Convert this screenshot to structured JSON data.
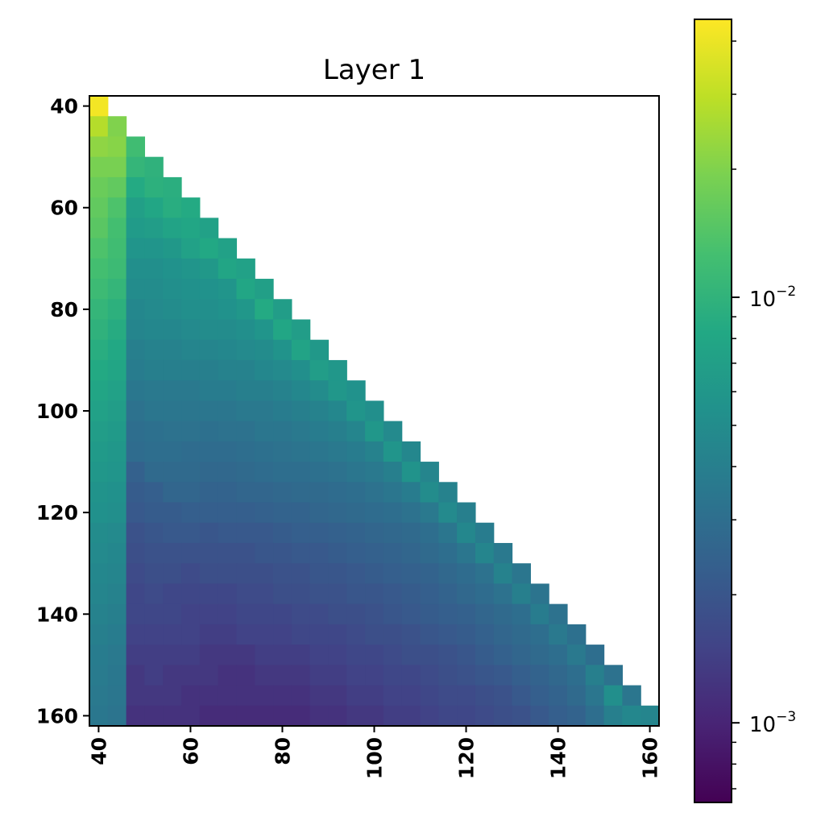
{
  "chart_data": {
    "type": "heatmap",
    "title": "Layer 1",
    "xlabel": "",
    "ylabel": "",
    "x_start": 40,
    "y_start": 40,
    "step": 4,
    "x_ticks": [
      40,
      60,
      80,
      100,
      120,
      140,
      160
    ],
    "y_ticks": [
      40,
      60,
      80,
      100,
      120,
      140,
      160
    ],
    "xlim": [
      38,
      162
    ],
    "ylim": [
      162,
      38
    ],
    "colorbar": {
      "scale": "log",
      "colormap": "viridis",
      "vmin": 0.00065,
      "vmax": 0.045,
      "major_ticks": [
        {
          "value": 0.01,
          "base": "10",
          "exp": "−2"
        },
        {
          "value": 0.001,
          "base": "10",
          "exp": "−3"
        }
      ],
      "minor_ticks": [
        0.0007,
        0.0008,
        0.0009,
        0.002,
        0.003,
        0.004,
        0.005,
        0.006,
        0.007,
        0.008,
        0.009,
        0.02,
        0.03,
        0.04
      ]
    },
    "grid": false,
    "masked": "upper triangle (x > y) is empty/white",
    "values": [
      [
        0.042
      ],
      [
        0.028,
        0.02
      ],
      [
        0.022,
        0.021,
        0.012
      ],
      [
        0.019,
        0.019,
        0.0105,
        0.0098
      ],
      [
        0.017,
        0.016,
        0.0085,
        0.0095,
        0.0092
      ],
      [
        0.016,
        0.0135,
        0.007,
        0.008,
        0.009,
        0.0085
      ],
      [
        0.015,
        0.0125,
        0.0065,
        0.0068,
        0.0075,
        0.008,
        0.0072
      ],
      [
        0.0135,
        0.012,
        0.0058,
        0.0058,
        0.0062,
        0.0072,
        0.0082,
        0.0072
      ],
      [
        0.0125,
        0.0115,
        0.0052,
        0.0052,
        0.0055,
        0.0058,
        0.0062,
        0.0078,
        0.0072
      ],
      [
        0.0115,
        0.0105,
        0.005,
        0.005,
        0.0052,
        0.0054,
        0.0055,
        0.0058,
        0.008,
        0.007
      ],
      [
        0.0105,
        0.0095,
        0.0046,
        0.0048,
        0.005,
        0.0052,
        0.0052,
        0.0055,
        0.006,
        0.0085,
        0.0068
      ],
      [
        0.0098,
        0.0088,
        0.0044,
        0.0046,
        0.0046,
        0.0048,
        0.005,
        0.005,
        0.0052,
        0.0058,
        0.008,
        0.0068
      ],
      [
        0.009,
        0.0082,
        0.004,
        0.0042,
        0.0042,
        0.0044,
        0.0044,
        0.0046,
        0.0048,
        0.005,
        0.0056,
        0.0075,
        0.0062
      ],
      [
        0.0084,
        0.0078,
        0.0038,
        0.004,
        0.004,
        0.004,
        0.004,
        0.0042,
        0.0042,
        0.0046,
        0.0048,
        0.0052,
        0.0068,
        0.006
      ],
      [
        0.0078,
        0.0072,
        0.0035,
        0.0036,
        0.0036,
        0.0036,
        0.0038,
        0.0038,
        0.004,
        0.004,
        0.0042,
        0.0046,
        0.005,
        0.006,
        0.0055
      ],
      [
        0.0072,
        0.0068,
        0.0032,
        0.0034,
        0.0034,
        0.0034,
        0.0034,
        0.0034,
        0.0036,
        0.0036,
        0.0038,
        0.004,
        0.0042,
        0.0046,
        0.0058,
        0.0052
      ],
      [
        0.0068,
        0.0064,
        0.003,
        0.0031,
        0.0032,
        0.0032,
        0.0031,
        0.0032,
        0.0032,
        0.0034,
        0.0034,
        0.0036,
        0.0038,
        0.004,
        0.0044,
        0.006,
        0.0048
      ],
      [
        0.0064,
        0.006,
        0.0029,
        0.003,
        0.003,
        0.0029,
        0.0029,
        0.0029,
        0.003,
        0.0031,
        0.0032,
        0.0033,
        0.0034,
        0.0036,
        0.0038,
        0.0042,
        0.0058,
        0.0046
      ],
      [
        0.006,
        0.0058,
        0.0024,
        0.0028,
        0.0028,
        0.0028,
        0.0027,
        0.0027,
        0.0028,
        0.0029,
        0.003,
        0.003,
        0.0031,
        0.0032,
        0.0034,
        0.0036,
        0.004,
        0.0056,
        0.0044
      ],
      [
        0.0056,
        0.0054,
        0.0022,
        0.0023,
        0.0026,
        0.0026,
        0.0025,
        0.0025,
        0.0026,
        0.0026,
        0.0027,
        0.0028,
        0.0028,
        0.0029,
        0.003,
        0.0032,
        0.0034,
        0.0038,
        0.005,
        0.0042
      ],
      [
        0.0054,
        0.0052,
        0.0021,
        0.0022,
        0.0022,
        0.0023,
        0.0023,
        0.0023,
        0.0023,
        0.0024,
        0.0025,
        0.0025,
        0.0026,
        0.0027,
        0.0028,
        0.0029,
        0.003,
        0.0032,
        0.0036,
        0.0048,
        0.004
      ],
      [
        0.005,
        0.0048,
        0.0019,
        0.002,
        0.0021,
        0.0021,
        0.002,
        0.0021,
        0.0021,
        0.0021,
        0.0022,
        0.0023,
        0.0023,
        0.0024,
        0.0025,
        0.0026,
        0.0027,
        0.0028,
        0.003,
        0.0034,
        0.0046,
        0.0038
      ],
      [
        0.0048,
        0.0046,
        0.0018,
        0.0019,
        0.0019,
        0.0019,
        0.0019,
        0.0019,
        0.0019,
        0.002,
        0.002,
        0.0021,
        0.0021,
        0.0022,
        0.0023,
        0.0024,
        0.0025,
        0.0026,
        0.0028,
        0.003,
        0.0034,
        0.0044,
        0.0036
      ],
      [
        0.0046,
        0.0044,
        0.0017,
        0.0018,
        0.0018,
        0.0017,
        0.0018,
        0.0018,
        0.0018,
        0.0018,
        0.0019,
        0.0019,
        0.002,
        0.002,
        0.0021,
        0.0022,
        0.0023,
        0.0024,
        0.0025,
        0.0027,
        0.0029,
        0.0032,
        0.0042,
        0.0034
      ],
      [
        0.0044,
        0.0042,
        0.0016,
        0.0017,
        0.0016,
        0.0016,
        0.0016,
        0.0016,
        0.0017,
        0.0017,
        0.0018,
        0.0018,
        0.0019,
        0.0019,
        0.002,
        0.002,
        0.0021,
        0.0022,
        0.0023,
        0.0025,
        0.0027,
        0.0029,
        0.0032,
        0.004,
        0.0033
      ],
      [
        0.0042,
        0.004,
        0.0016,
        0.0016,
        0.0016,
        0.0015,
        0.0015,
        0.0015,
        0.0016,
        0.0016,
        0.0016,
        0.0017,
        0.0017,
        0.0018,
        0.0018,
        0.0019,
        0.002,
        0.0021,
        0.0022,
        0.0023,
        0.0024,
        0.0026,
        0.0028,
        0.003,
        0.0038,
        0.0032
      ],
      [
        0.004,
        0.0038,
        0.0015,
        0.0015,
        0.0015,
        0.0015,
        0.0014,
        0.0014,
        0.0015,
        0.0015,
        0.0015,
        0.0016,
        0.0016,
        0.0016,
        0.0017,
        0.0018,
        0.0018,
        0.0019,
        0.002,
        0.0021,
        0.0022,
        0.0024,
        0.0026,
        0.0028,
        0.003,
        0.0036,
        0.0031
      ],
      [
        0.0038,
        0.0036,
        0.0014,
        0.0014,
        0.0014,
        0.0014,
        0.0013,
        0.0013,
        0.0013,
        0.0014,
        0.0014,
        0.0014,
        0.0015,
        0.0015,
        0.0016,
        0.0016,
        0.0017,
        0.0018,
        0.0018,
        0.0019,
        0.002,
        0.0022,
        0.0024,
        0.0026,
        0.0028,
        0.003,
        0.0036,
        0.003
      ],
      [
        0.0037,
        0.0035,
        0.0013,
        0.0014,
        0.0013,
        0.0013,
        0.0013,
        0.0012,
        0.0012,
        0.0013,
        0.0013,
        0.0013,
        0.0014,
        0.0014,
        0.0015,
        0.0015,
        0.0016,
        0.0016,
        0.0017,
        0.0018,
        0.0019,
        0.002,
        0.0021,
        0.0023,
        0.0025,
        0.0027,
        0.003,
        0.004,
        0.0032
      ],
      [
        0.0036,
        0.0034,
        0.0013,
        0.0013,
        0.0013,
        0.0012,
        0.0012,
        0.0012,
        0.0012,
        0.0012,
        0.0012,
        0.0012,
        0.0013,
        0.0013,
        0.0014,
        0.0014,
        0.0015,
        0.0015,
        0.0016,
        0.0017,
        0.0017,
        0.0018,
        0.0019,
        0.0021,
        0.0023,
        0.0025,
        0.0028,
        0.0034,
        0.0052,
        0.0034
      ],
      [
        0.0035,
        0.0033,
        0.0012,
        0.0012,
        0.0012,
        0.0012,
        0.0011,
        0.0011,
        0.0011,
        0.0011,
        0.0011,
        0.0011,
        0.0012,
        0.0012,
        0.0013,
        0.0013,
        0.0014,
        0.0014,
        0.0015,
        0.0016,
        0.0016,
        0.0017,
        0.0018,
        0.0019,
        0.0021,
        0.0023,
        0.0025,
        0.003,
        0.004,
        0.0046,
        0.0044
      ]
    ]
  }
}
